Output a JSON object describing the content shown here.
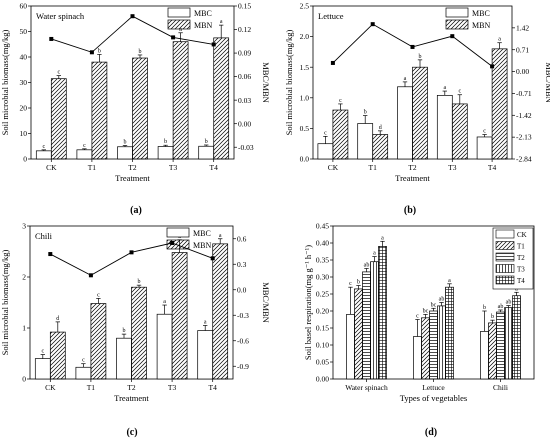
{
  "figure": {
    "panels": [
      {
        "id": "a",
        "caption": "(a)",
        "title": "Water spinach",
        "type": "bar",
        "categories": [
          "CK",
          "T1",
          "T2",
          "T3",
          "T4"
        ],
        "xlabel": "Treatment",
        "ylabel": "Soil microbial biomass(mg/kg)",
        "y2label": "MBC/MBN",
        "ylim": [
          0,
          60
        ],
        "yticks": [
          "0",
          "10",
          "20",
          "30",
          "40",
          "50",
          "60"
        ],
        "y2lim": [
          -0.045,
          0.15
        ],
        "y2ticks": [
          "-0.03",
          "0.00",
          "0.03",
          "0.06",
          "0.09",
          "0.12",
          "0.15"
        ],
        "legend": [
          "MBC",
          "MBN"
        ],
        "series": [
          {
            "name": "MBC",
            "values": [
              3.2,
              3.6,
              4.8,
              4.9,
              5.0
            ],
            "errors": [
              0.4,
              0.4,
              0.5,
              0.5,
              0.5
            ],
            "letters": [
              "c",
              "c",
              "b",
              "b",
              "b"
            ]
          },
          {
            "name": "MBN",
            "values": [
              31.5,
              38.0,
              39.6,
              46.0,
              47.5
            ],
            "errors": [
              1.2,
              3.0,
              1.2,
              3.5,
              5.0
            ],
            "letters": [
              "c",
              "b",
              "b",
              "a",
              "a"
            ]
          }
        ],
        "ratio": [
          0.108,
          0.091,
          0.137,
          0.11,
          0.101
        ]
      },
      {
        "id": "b",
        "caption": "(b)",
        "title": "Lettuce",
        "type": "bar",
        "categories": [
          "CK",
          "T1",
          "T2",
          "T3",
          "T4"
        ],
        "xlabel": "Treatment",
        "ylabel": "Soil microbial biomass(mg/kg)",
        "y2label": "MBC/MBN",
        "ylim": [
          0,
          2.5
        ],
        "yticks": [
          "0.0",
          "0.5",
          "1.0",
          "1.5",
          "2.0",
          "2.5"
        ],
        "y2lim": [
          -2.84,
          2.13
        ],
        "y2ticks": [
          "-2.84",
          "-2.13",
          "-1.42",
          "-0.71",
          "0.00",
          "0.71",
          "1.42"
        ],
        "legend": [
          "MBC",
          "MBN"
        ],
        "series": [
          {
            "name": "MBC",
            "values": [
              0.25,
              0.58,
              1.18,
              1.04,
              0.36
            ],
            "errors": [
              0.12,
              0.13,
              0.08,
              0.07,
              0.04
            ],
            "letters": [
              "c",
              "b",
              "a",
              "a",
              "c"
            ]
          },
          {
            "name": "MBN",
            "values": [
              0.8,
              0.4,
              1.5,
              0.9,
              1.8
            ],
            "errors": [
              0.1,
              0.06,
              0.12,
              0.15,
              0.1
            ],
            "letters": [
              "c",
              "d",
              "b",
              "c",
              "a"
            ]
          }
        ],
        "ratio": [
          0.28,
          1.54,
          0.8,
          1.15,
          0.17
        ]
      },
      {
        "id": "c",
        "caption": "(c)",
        "title": "Chili",
        "type": "bar",
        "categories": [
          "CK",
          "T1",
          "T2",
          "T3",
          "T4"
        ],
        "xlabel": "Treatment",
        "ylabel": "Soil microbial biomass(mg/kg)",
        "y2label": "MBC/MBN",
        "ylim": [
          0,
          3
        ],
        "yticks": [
          "0",
          "1",
          "2",
          "3"
        ],
        "y2lim": [
          -1.05,
          0.75
        ],
        "y2ticks": [
          "-0.9",
          "-0.6",
          "-0.3",
          "0.0",
          "0.3",
          "0.6"
        ],
        "legend": [
          "MBC",
          "MBN"
        ],
        "series": [
          {
            "name": "MBC",
            "values": [
              0.4,
              0.23,
              0.8,
              1.27,
              0.95
            ],
            "errors": [
              0.08,
              0.07,
              0.08,
              0.18,
              0.1
            ],
            "letters": [
              "c",
              "c",
              "b",
              "a",
              "a"
            ]
          },
          {
            "name": "MBN",
            "values": [
              0.92,
              1.48,
              1.8,
              2.48,
              2.65
            ],
            "errors": [
              0.2,
              0.1,
              0.04,
              0.25,
              0.1
            ],
            "letters": [
              "d",
              "c",
              "b",
              "a",
              "a"
            ]
          }
        ],
        "ratio": [
          0.42,
          0.17,
          0.44,
          0.55,
          0.37
        ]
      },
      {
        "id": "d",
        "caption": "(d)",
        "type": "bar",
        "categories": [
          "Water spinach",
          "Lettuce",
          "Chili"
        ],
        "xlabel": "Types of vegetables",
        "ylabel": "Soil basel respiration(mg g⁻¹ h⁻¹)",
        "ylim": [
          0,
          0.45
        ],
        "yticks": [
          "0.00",
          "0.05",
          "0.10",
          "0.15",
          "0.20",
          "0.25",
          "0.30",
          "0.35",
          "0.40",
          "0.45"
        ],
        "legend": [
          "CK",
          "T1",
          "T2",
          "T3",
          "T4"
        ],
        "series": [
          {
            "name": "CK",
            "values": [
              0.19,
              0.125,
              0.14
            ],
            "errors": [
              0.08,
              0.05,
              0.06
            ],
            "letters": [
              "c",
              "c",
              "b"
            ]
          },
          {
            "name": "T1",
            "values": [
              0.265,
              0.18,
              0.165
            ],
            "errors": [
              0.01,
              0.01,
              0.008
            ],
            "letters": [
              "b",
              "bc",
              "b"
            ]
          },
          {
            "name": "T2",
            "values": [
              0.315,
              0.2,
              0.197
            ],
            "errors": [
              0.01,
              0.008,
              0.006
            ],
            "letters": [
              "ab",
              "bc",
              "ab"
            ]
          },
          {
            "name": "T3",
            "values": [
              0.345,
              0.215,
              0.21
            ],
            "errors": [
              0.015,
              0.01,
              0.006
            ],
            "letters": [
              "a",
              "ab",
              "ab"
            ]
          },
          {
            "name": "T4",
            "values": [
              0.39,
              0.27,
              0.245
            ],
            "errors": [
              0.015,
              0.01,
              0.01
            ],
            "letters": [
              "a",
              "a",
              "a"
            ]
          }
        ]
      }
    ]
  },
  "chart_data": [
    {
      "type": "bar",
      "title": "Water spinach",
      "categories": [
        "CK",
        "T1",
        "T2",
        "T3",
        "T4"
      ],
      "xlabel": "Treatment",
      "ylabel": "Soil microbial biomass(mg/kg)",
      "series": [
        {
          "name": "MBC",
          "values": [
            3.2,
            3.6,
            4.8,
            4.9,
            5.0
          ]
        },
        {
          "name": "MBN",
          "values": [
            31.5,
            38.0,
            39.6,
            46.0,
            47.5
          ]
        },
        {
          "name": "MBC/MBN",
          "values": [
            0.108,
            0.091,
            0.137,
            0.11,
            0.101
          ]
        }
      ]
    },
    {
      "type": "bar",
      "title": "Lettuce",
      "categories": [
        "CK",
        "T1",
        "T2",
        "T3",
        "T4"
      ],
      "xlabel": "Treatment",
      "ylabel": "Soil microbial biomass(mg/kg)",
      "series": [
        {
          "name": "MBC",
          "values": [
            0.25,
            0.58,
            1.18,
            1.04,
            0.36
          ]
        },
        {
          "name": "MBN",
          "values": [
            0.8,
            0.4,
            1.5,
            0.9,
            1.8
          ]
        },
        {
          "name": "MBC/MBN",
          "values": [
            0.28,
            1.54,
            0.8,
            1.15,
            0.17
          ]
        }
      ]
    },
    {
      "type": "bar",
      "title": "Chili",
      "categories": [
        "CK",
        "T1",
        "T2",
        "T3",
        "T4"
      ],
      "xlabel": "Treatment",
      "ylabel": "Soil microbial biomass(mg/kg)",
      "series": [
        {
          "name": "MBC",
          "values": [
            0.4,
            0.23,
            0.8,
            1.27,
            0.95
          ]
        },
        {
          "name": "MBN",
          "values": [
            0.92,
            1.48,
            1.8,
            2.48,
            2.65
          ]
        },
        {
          "name": "MBC/MBN",
          "values": [
            0.42,
            0.17,
            0.44,
            0.55,
            0.37
          ]
        }
      ]
    },
    {
      "type": "bar",
      "categories": [
        "Water spinach",
        "Lettuce",
        "Chili"
      ],
      "xlabel": "Types of vegetables",
      "ylabel": "Soil basel respiration(mg g⁻¹ h⁻¹)",
      "series": [
        {
          "name": "CK",
          "values": [
            0.19,
            0.125,
            0.14
          ]
        },
        {
          "name": "T1",
          "values": [
            0.265,
            0.18,
            0.165
          ]
        },
        {
          "name": "T2",
          "values": [
            0.315,
            0.2,
            0.197
          ]
        },
        {
          "name": "T3",
          "values": [
            0.345,
            0.215,
            0.21
          ]
        },
        {
          "name": "T4",
          "values": [
            0.39,
            0.27,
            0.245
          ]
        }
      ]
    }
  ]
}
